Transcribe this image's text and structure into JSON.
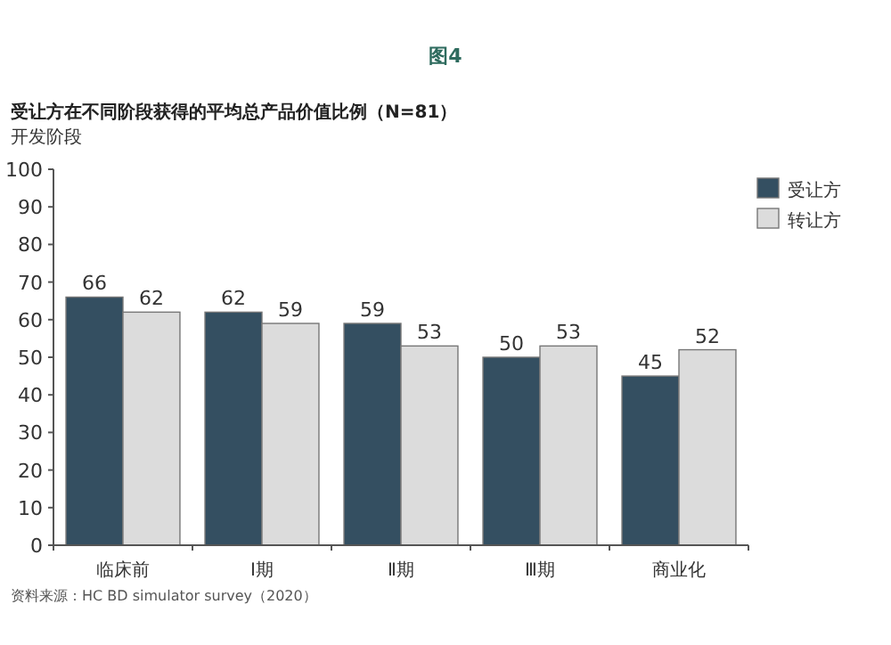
{
  "chart_data": {
    "type": "bar",
    "title": "图4",
    "subtitle": "受让方在不同阶段获得的平均总产品价值比例（N=81）",
    "ylabel": "开发阶段",
    "categories": [
      "临床前",
      "Ⅰ期",
      "Ⅱ期",
      "Ⅲ期",
      "商业化"
    ],
    "series": [
      {
        "name": "受让方",
        "color": "#344f61",
        "values": [
          66,
          62,
          59,
          50,
          45
        ]
      },
      {
        "name": "转让方",
        "color": "#dcdcdc",
        "values": [
          62,
          59,
          53,
          53,
          52
        ]
      }
    ],
    "ylim": [
      0,
      100
    ],
    "yticks": [
      0,
      10,
      20,
      30,
      40,
      50,
      60,
      70,
      80,
      90,
      100
    ],
    "data_labels": true,
    "legend": "top right",
    "grid": false,
    "annotations": [
      "资料来源：HC BD simulator survey（2020）"
    ]
  }
}
